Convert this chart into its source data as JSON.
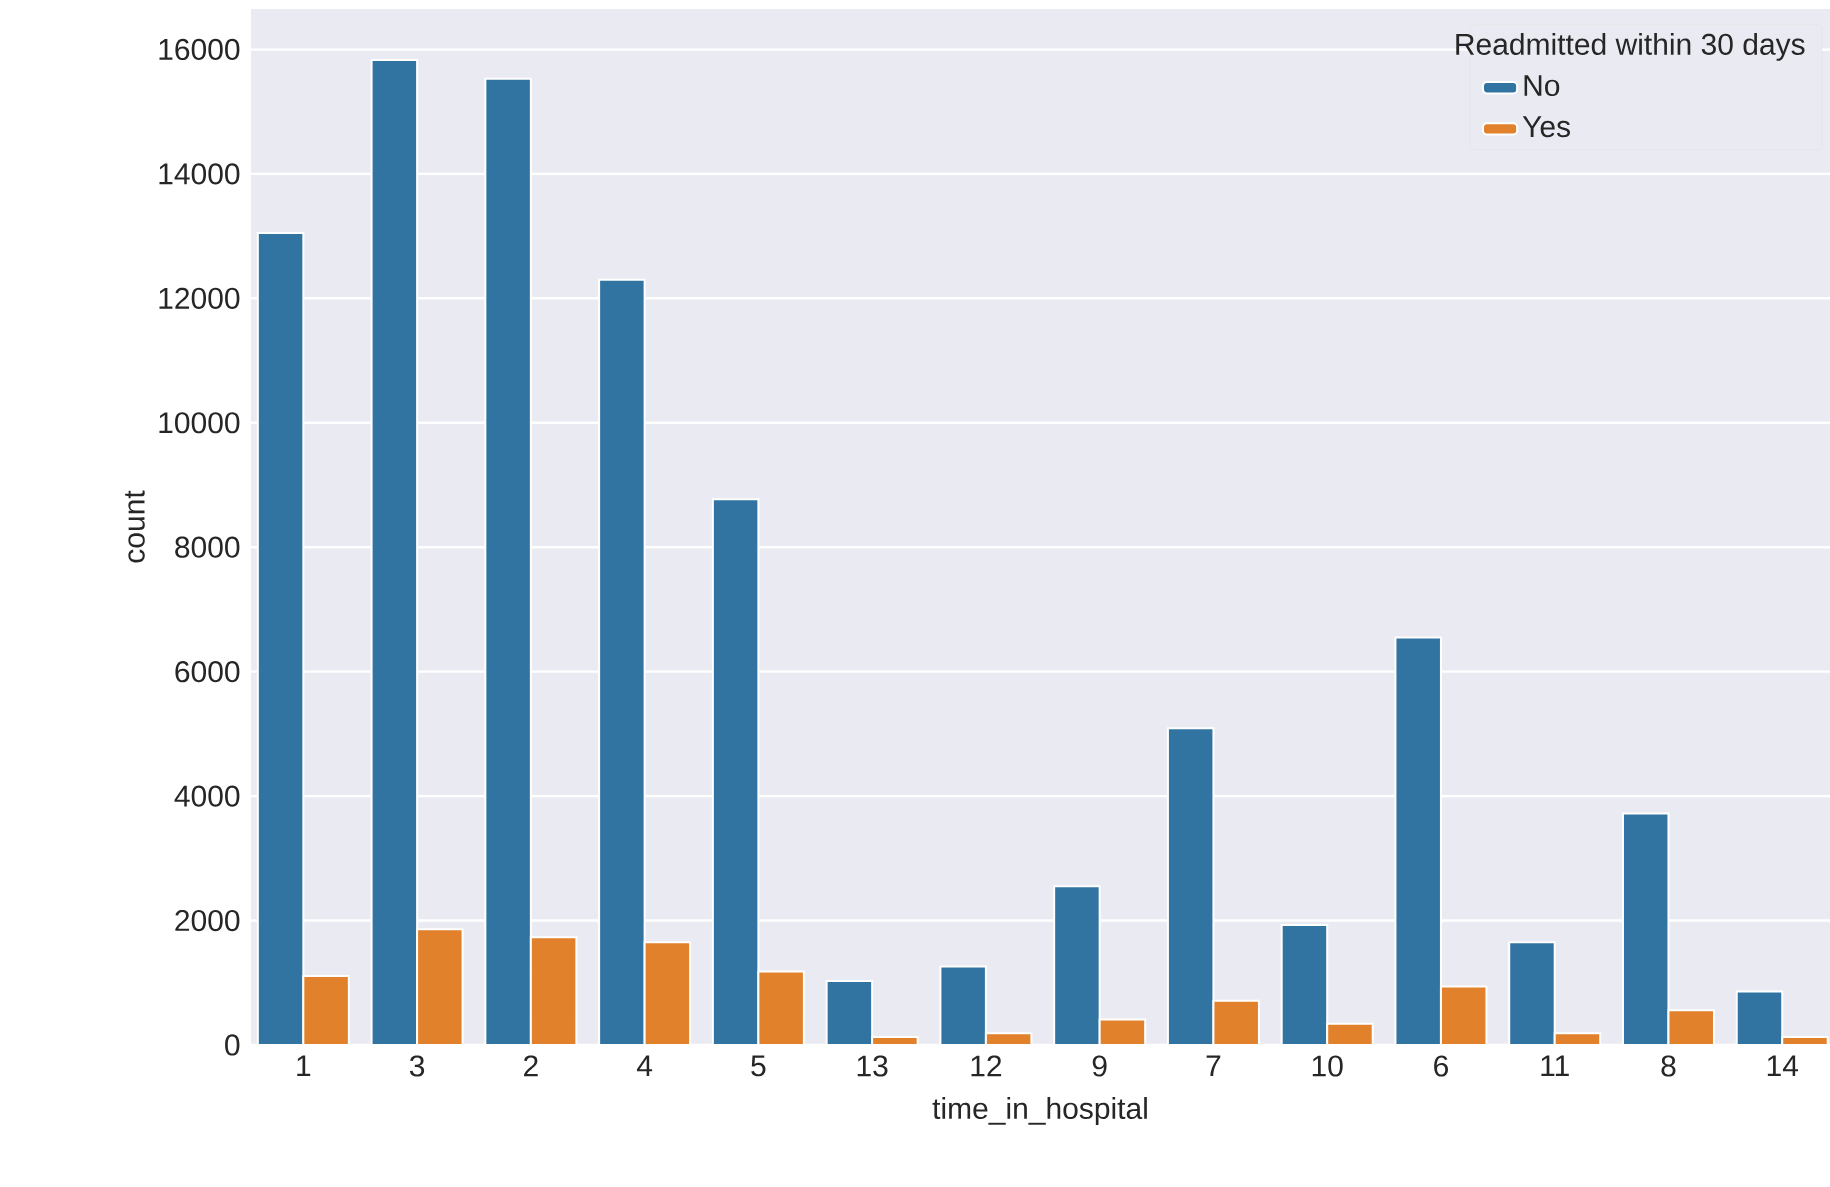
{
  "chart_data": {
    "type": "bar",
    "xlabel": "time_in_hospital",
    "ylabel": "count",
    "legend_title": "Readmitted within 30 days",
    "categories": [
      "1",
      "3",
      "2",
      "4",
      "5",
      "13",
      "12",
      "9",
      "7",
      "10",
      "6",
      "11",
      "8",
      "14"
    ],
    "series": [
      {
        "name": "No",
        "color": "#3274a1",
        "values": [
          13050,
          15830,
          15530,
          12300,
          8770,
          1030,
          1260,
          2550,
          5090,
          1930,
          6550,
          1650,
          3720,
          860
        ]
      },
      {
        "name": "Yes",
        "color": "#e1812c",
        "values": [
          1110,
          1860,
          1730,
          1650,
          1180,
          130,
          190,
          410,
          710,
          340,
          940,
          190,
          560,
          130
        ]
      }
    ],
    "ylim": [
      0,
      16650
    ],
    "yticks": [
      0,
      2000,
      4000,
      6000,
      8000,
      10000,
      12000,
      14000,
      16000
    ],
    "grid": "y",
    "legend": "top right"
  }
}
